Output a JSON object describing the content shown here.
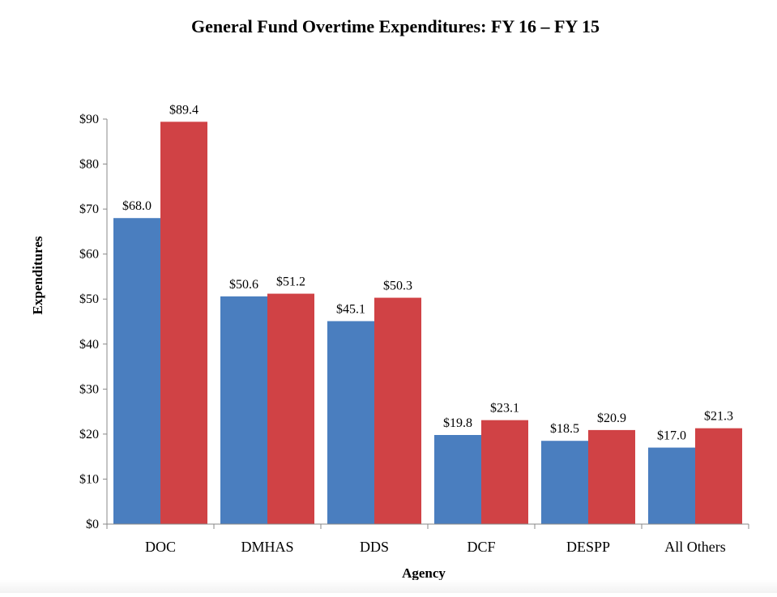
{
  "chart_data": {
    "type": "bar",
    "title": "General Fund Overtime Expenditures: FY 16 – FY 15",
    "xlabel": "Agency",
    "ylabel": "Expenditures",
    "categories": [
      "DOC",
      "DMHAS",
      "DDS",
      "DCF",
      "DESPP",
      "All Others"
    ],
    "series": [
      {
        "values": [
          68.0,
          50.6,
          45.1,
          19.8,
          18.5,
          17.0
        ],
        "color": "#4a7ebf",
        "labels": [
          "$68.0",
          "$50.6",
          "$45.1",
          "$19.8",
          "$18.5",
          "$17.0"
        ]
      },
      {
        "values": [
          89.4,
          51.2,
          50.3,
          23.1,
          20.9,
          21.3
        ],
        "color": "#d04245",
        "labels": [
          "$89.4",
          "$51.2",
          "$50.3",
          "$23.1",
          "$20.9",
          "$21.3"
        ]
      }
    ],
    "ylim": [
      0,
      90
    ],
    "yticks": [
      0,
      10,
      20,
      30,
      40,
      50,
      60,
      70,
      80,
      90
    ],
    "ytick_labels": [
      "$0",
      "$10",
      "$20",
      "$30",
      "$40",
      "$50",
      "$60",
      "$70",
      "$80",
      "$90"
    ],
    "grid": false,
    "legend": "none"
  }
}
